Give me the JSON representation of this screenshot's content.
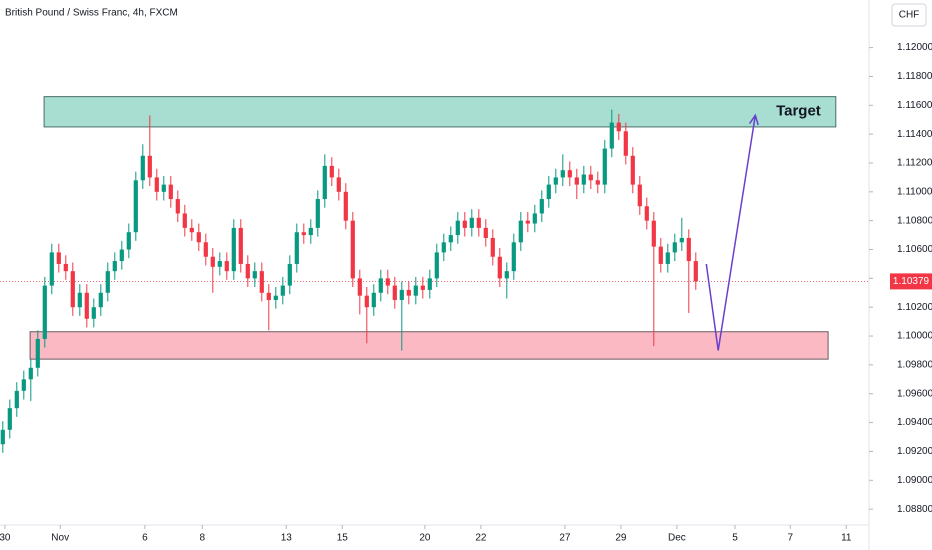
{
  "chart_data": {
    "type": "candlestick",
    "title": "British Pound / Swiss Franc, 4h, FXCM",
    "currency": "CHF",
    "up_color": "#089981",
    "down_color": "#f23645",
    "xlim": [
      -0.4,
      123.6
    ],
    "ylim": [
      1.0869,
      1.1233
    ],
    "xticks": [
      {
        "value": 0.3,
        "label": "30"
      },
      {
        "value": 8.2,
        "label": "Nov"
      },
      {
        "value": 20.3,
        "label": "6"
      },
      {
        "value": 28.5,
        "label": "8"
      },
      {
        "value": 40.5,
        "label": "13"
      },
      {
        "value": 48.5,
        "label": "15"
      },
      {
        "value": 60.3,
        "label": "20"
      },
      {
        "value": 68.3,
        "label": "22"
      },
      {
        "value": 80.3,
        "label": "27"
      },
      {
        "value": 88.3,
        "label": "29"
      },
      {
        "value": 96.3,
        "label": "Dec"
      },
      {
        "value": 104.6,
        "label": "5"
      },
      {
        "value": 112.5,
        "label": "7"
      },
      {
        "value": 120.5,
        "label": "11"
      }
    ],
    "yticks": [
      {
        "value": 1.088,
        "label": "1.08800"
      },
      {
        "value": 1.09,
        "label": "1.09000"
      },
      {
        "value": 1.092,
        "label": "1.09200"
      },
      {
        "value": 1.094,
        "label": "1.09400"
      },
      {
        "value": 1.096,
        "label": "1.09600"
      },
      {
        "value": 1.098,
        "label": "1.09800"
      },
      {
        "value": 1.1,
        "label": "1.10000"
      },
      {
        "value": 1.102,
        "label": "1.10200"
      },
      {
        "value": 1.104,
        "label": "1.10400"
      },
      {
        "value": 1.106,
        "label": "1.10600"
      },
      {
        "value": 1.108,
        "label": "1.10800"
      },
      {
        "value": 1.11,
        "label": "1.11000"
      },
      {
        "value": 1.112,
        "label": "1.11200"
      },
      {
        "value": 1.114,
        "label": "1.11400"
      },
      {
        "value": 1.116,
        "label": "1.11600"
      },
      {
        "value": 1.118,
        "label": "1.11800"
      },
      {
        "value": 1.12,
        "label": "1.12000"
      }
    ],
    "x": [
      0,
      1,
      2,
      3,
      4,
      5,
      6,
      7,
      8,
      9,
      10,
      11,
      12,
      13,
      14,
      15,
      16,
      17,
      18,
      19,
      20,
      21,
      22,
      23,
      24,
      25,
      26,
      27,
      28,
      29,
      30,
      31,
      32,
      33,
      34,
      35,
      36,
      37,
      38,
      39,
      40,
      41,
      42,
      43,
      44,
      45,
      46,
      47,
      48,
      49,
      50,
      51,
      52,
      53,
      54,
      55,
      56,
      57,
      58,
      59,
      60,
      61,
      62,
      63,
      64,
      65,
      66,
      67,
      68,
      69,
      70,
      71,
      72,
      73,
      74,
      75,
      76,
      77,
      78,
      79,
      80,
      81,
      82,
      83,
      84,
      85,
      86,
      87,
      88,
      89,
      90,
      91,
      92,
      93,
      94,
      95,
      96,
      97,
      98,
      99
    ],
    "open": [
      1.0925,
      1.0935,
      1.095,
      1.0962,
      1.097,
      1.0978,
      1.0998,
      1.1035,
      1.1058,
      1.105,
      1.1045,
      1.102,
      1.103,
      1.1012,
      1.102,
      1.103,
      1.1045,
      1.1052,
      1.106,
      1.1072,
      1.1108,
      1.1125,
      1.111,
      1.11,
      1.1105,
      1.1095,
      1.1085,
      1.1075,
      1.1072,
      1.1065,
      1.1055,
      1.1048,
      1.1052,
      1.1045,
      1.1075,
      1.105,
      1.104,
      1.1045,
      1.103,
      1.1025,
      1.1028,
      1.1035,
      1.105,
      1.1072,
      1.107,
      1.1075,
      1.1095,
      1.1118,
      1.111,
      1.11,
      1.108,
      1.104,
      1.1028,
      1.102,
      1.103,
      1.104,
      1.1035,
      1.1025,
      1.1032,
      1.1028,
      1.1035,
      1.1032,
      1.104,
      1.1058,
      1.1065,
      1.107,
      1.108,
      1.1075,
      1.1082,
      1.1075,
      1.1068,
      1.1055,
      1.104,
      1.1045,
      1.1065,
      1.108,
      1.1078,
      1.1085,
      1.1095,
      1.1105,
      1.111,
      1.1115,
      1.111,
      1.1105,
      1.1112,
      1.1108,
      1.1105,
      1.113,
      1.1148,
      1.1142,
      1.1125,
      1.1105,
      1.109,
      1.108,
      1.1062,
      1.105,
      1.1058,
      1.1065,
      1.1068,
      1.1052
    ],
    "high": [
      1.0941,
      1.0956,
      1.0968,
      1.0976,
      1.0984,
      1.1004,
      1.1041,
      1.1064,
      1.1064,
      1.1056,
      1.1051,
      1.1036,
      1.1036,
      1.1026,
      1.1036,
      1.1051,
      1.1058,
      1.1066,
      1.1078,
      1.1114,
      1.1133,
      1.1153,
      1.1116,
      1.1111,
      1.1111,
      1.1101,
      1.1091,
      1.1081,
      1.1078,
      1.1071,
      1.1061,
      1.1058,
      1.1058,
      1.1081,
      1.1081,
      1.1056,
      1.1051,
      1.1051,
      1.1036,
      1.1034,
      1.1041,
      1.1056,
      1.1078,
      1.1078,
      1.1081,
      1.1101,
      1.1126,
      1.1124,
      1.1116,
      1.1106,
      1.1086,
      1.1046,
      1.1034,
      1.1036,
      1.1046,
      1.1046,
      1.1041,
      1.1038,
      1.1038,
      1.1041,
      1.1041,
      1.1046,
      1.1064,
      1.1071,
      1.1076,
      1.1086,
      1.1086,
      1.1088,
      1.1088,
      1.1081,
      1.1074,
      1.1061,
      1.1051,
      1.1071,
      1.1086,
      1.1086,
      1.1091,
      1.1101,
      1.1111,
      1.1116,
      1.1126,
      1.1121,
      1.1116,
      1.1118,
      1.1118,
      1.1114,
      1.1136,
      1.1157,
      1.1154,
      1.1148,
      1.1131,
      1.1111,
      1.1096,
      1.1086,
      1.1068,
      1.1064,
      1.1071,
      1.1082,
      1.1074,
      1.1058
    ],
    "low": [
      1.0919,
      1.0929,
      1.0944,
      1.0956,
      1.0955,
      1.0972,
      1.0992,
      1.1029,
      1.1044,
      1.1039,
      1.1014,
      1.1014,
      1.1006,
      1.1006,
      1.1014,
      1.1024,
      1.1039,
      1.1046,
      1.1054,
      1.1066,
      1.1102,
      1.1104,
      1.1094,
      1.1094,
      1.1089,
      1.1079,
      1.1069,
      1.1066,
      1.1059,
      1.1049,
      1.103,
      1.1042,
      1.1039,
      1.1039,
      1.1044,
      1.1034,
      1.1034,
      1.1024,
      1.1004,
      1.1019,
      1.1022,
      1.1029,
      1.1044,
      1.1064,
      1.1064,
      1.1069,
      1.1089,
      1.1104,
      1.1094,
      1.1074,
      1.1034,
      1.1015,
      1.0995,
      1.1014,
      1.1024,
      1.1029,
      1.1019,
      1.099,
      1.1022,
      1.1022,
      1.1026,
      1.1026,
      1.1034,
      1.1052,
      1.1059,
      1.1064,
      1.1069,
      1.1069,
      1.1069,
      1.1062,
      1.1049,
      1.1034,
      1.1026,
      1.1039,
      1.1059,
      1.1072,
      1.1072,
      1.1079,
      1.1089,
      1.1099,
      1.1104,
      1.1104,
      1.1095,
      1.1099,
      1.1102,
      1.1099,
      1.1099,
      1.1124,
      1.1136,
      1.1119,
      1.1099,
      1.1084,
      1.1074,
      1.0993,
      1.1044,
      1.1044,
      1.1052,
      1.1059,
      1.1016,
      1.1032
    ],
    "close": [
      1.0935,
      1.095,
      1.0962,
      1.097,
      1.0978,
      1.0998,
      1.1035,
      1.1058,
      1.105,
      1.1045,
      1.102,
      1.103,
      1.1012,
      1.102,
      1.103,
      1.1045,
      1.1052,
      1.106,
      1.1072,
      1.1108,
      1.1125,
      1.111,
      1.11,
      1.1105,
      1.1095,
      1.1085,
      1.1075,
      1.1072,
      1.1065,
      1.1055,
      1.1048,
      1.1052,
      1.1045,
      1.1075,
      1.105,
      1.104,
      1.1045,
      1.103,
      1.1025,
      1.1028,
      1.1035,
      1.105,
      1.1072,
      1.107,
      1.1075,
      1.1095,
      1.1118,
      1.111,
      1.11,
      1.108,
      1.104,
      1.1028,
      1.102,
      1.103,
      1.104,
      1.1035,
      1.1025,
      1.1032,
      1.1028,
      1.1035,
      1.1032,
      1.104,
      1.1058,
      1.1065,
      1.107,
      1.108,
      1.1075,
      1.1082,
      1.1075,
      1.1068,
      1.1055,
      1.104,
      1.1045,
      1.1065,
      1.108,
      1.1078,
      1.1085,
      1.1095,
      1.1105,
      1.111,
      1.1115,
      1.111,
      1.1105,
      1.1112,
      1.1108,
      1.1105,
      1.113,
      1.1148,
      1.1142,
      1.1125,
      1.1105,
      1.109,
      1.108,
      1.1062,
      1.105,
      1.1058,
      1.1065,
      1.1068,
      1.1052,
      1.10379
    ],
    "zones": [
      {
        "label": "Target",
        "color": "#a8ddd1",
        "border": "#4a6e66",
        "xlim": [
          5.9,
          119
        ],
        "ylim": [
          1.1145,
          1.1166
        ]
      },
      {
        "color": "#fbbac3",
        "border": "#6a5a5e",
        "xlim": [
          3.9,
          117.9
        ],
        "ylim": [
          1.0984,
          1.1003
        ]
      }
    ],
    "arrow": {
      "color": "#6a3fd0",
      "x": [
        100.5,
        102.2,
        107.5
      ],
      "y": [
        1.105,
        1.099,
        1.1153
      ]
    }
  }
}
